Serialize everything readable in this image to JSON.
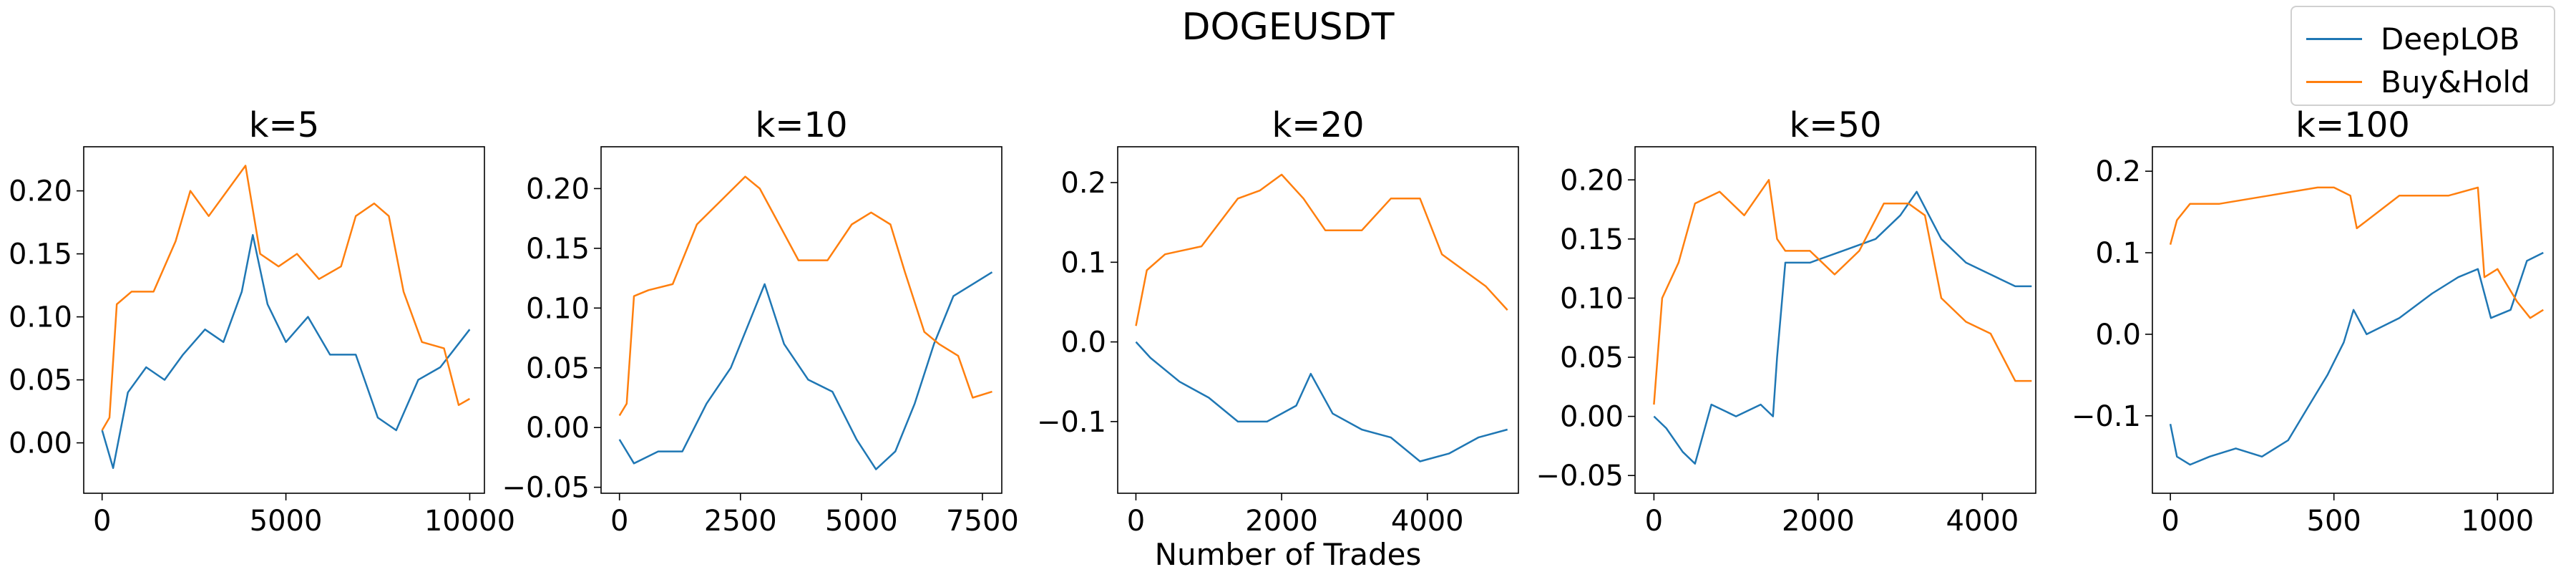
{
  "figure_title": "DOGEUSDT",
  "x_axis_label": "Number of Trades",
  "legend": [
    {
      "name": "DeepLOB",
      "color": "#1f77b4"
    },
    {
      "name": "Buy&Hold",
      "color": "#ff7f0e"
    }
  ],
  "chart_data": [
    {
      "type": "line",
      "title": "k=5",
      "xlim": [
        -500,
        10400
      ],
      "ylim": [
        -0.04,
        0.235
      ],
      "xticks": [
        0,
        5000,
        10000
      ],
      "yticks": [
        0.0,
        0.05,
        0.1,
        0.15,
        0.2
      ],
      "ytick_decimals": 2,
      "series": [
        {
          "name": "DeepLOB",
          "x": [
            0,
            300,
            700,
            1200,
            1700,
            2200,
            2800,
            3300,
            3800,
            4100,
            4500,
            5000,
            5600,
            6200,
            6900,
            7500,
            8000,
            8600,
            9200,
            10000
          ],
          "y": [
            0.01,
            -0.02,
            0.04,
            0.06,
            0.05,
            0.07,
            0.09,
            0.08,
            0.12,
            0.165,
            0.11,
            0.08,
            0.1,
            0.07,
            0.07,
            0.02,
            0.01,
            0.05,
            0.06,
            0.09
          ]
        },
        {
          "name": "Buy&Hold",
          "x": [
            0,
            200,
            400,
            800,
            1400,
            2000,
            2400,
            2900,
            3400,
            3900,
            4300,
            4800,
            5300,
            5900,
            6500,
            6900,
            7400,
            7800,
            8200,
            8700,
            9300,
            9700,
            10000
          ],
          "y": [
            0.01,
            0.02,
            0.11,
            0.12,
            0.12,
            0.16,
            0.2,
            0.18,
            0.2,
            0.22,
            0.15,
            0.14,
            0.15,
            0.13,
            0.14,
            0.18,
            0.19,
            0.18,
            0.12,
            0.08,
            0.075,
            0.03,
            0.035
          ]
        }
      ]
    },
    {
      "type": "line",
      "title": "k=10",
      "xlim": [
        -380,
        7900
      ],
      "ylim": [
        -0.055,
        0.235
      ],
      "xticks": [
        0,
        2500,
        5000,
        7500
      ],
      "yticks": [
        -0.05,
        0.0,
        0.05,
        0.1,
        0.15,
        0.2
      ],
      "ytick_decimals": 2,
      "series": [
        {
          "name": "DeepLOB",
          "x": [
            0,
            300,
            800,
            1300,
            1800,
            2300,
            2800,
            3000,
            3400,
            3900,
            4400,
            4900,
            5300,
            5700,
            6100,
            6500,
            6900,
            7300,
            7700
          ],
          "y": [
            -0.01,
            -0.03,
            -0.02,
            -0.02,
            0.02,
            0.05,
            0.1,
            0.12,
            0.07,
            0.04,
            0.03,
            -0.01,
            -0.035,
            -0.02,
            0.02,
            0.07,
            0.11,
            0.12,
            0.13
          ]
        },
        {
          "name": "Buy&Hold",
          "x": [
            0,
            150,
            300,
            600,
            1100,
            1600,
            2100,
            2600,
            2900,
            3300,
            3700,
            4300,
            4800,
            5200,
            5600,
            5900,
            6300,
            6600,
            7000,
            7300,
            7700
          ],
          "y": [
            0.01,
            0.02,
            0.11,
            0.115,
            0.12,
            0.17,
            0.19,
            0.21,
            0.2,
            0.17,
            0.14,
            0.14,
            0.17,
            0.18,
            0.17,
            0.13,
            0.08,
            0.07,
            0.06,
            0.025,
            0.03
          ]
        }
      ]
    },
    {
      "type": "line",
      "title": "k=20",
      "xlim": [
        -250,
        5250
      ],
      "ylim": [
        -0.19,
        0.245
      ],
      "xticks": [
        0,
        2000,
        4000
      ],
      "yticks": [
        -0.1,
        0.0,
        0.1,
        0.2
      ],
      "ytick_decimals": 1,
      "series": [
        {
          "name": "DeepLOB",
          "x": [
            0,
            200,
            600,
            1000,
            1400,
            1800,
            2200,
            2400,
            2700,
            3100,
            3500,
            3900,
            4300,
            4700,
            5100
          ],
          "y": [
            0.0,
            -0.02,
            -0.05,
            -0.07,
            -0.1,
            -0.1,
            -0.08,
            -0.04,
            -0.09,
            -0.11,
            -0.12,
            -0.15,
            -0.14,
            -0.12,
            -0.11
          ]
        },
        {
          "name": "Buy&Hold",
          "x": [
            0,
            150,
            400,
            900,
            1400,
            1700,
            2000,
            2300,
            2600,
            3100,
            3500,
            3900,
            4200,
            4500,
            4800,
            5100
          ],
          "y": [
            0.02,
            0.09,
            0.11,
            0.12,
            0.18,
            0.19,
            0.21,
            0.18,
            0.14,
            0.14,
            0.18,
            0.18,
            0.11,
            0.09,
            0.07,
            0.04
          ]
        }
      ]
    },
    {
      "type": "line",
      "title": "k=50",
      "xlim": [
        -230,
        4650
      ],
      "ylim": [
        -0.065,
        0.228
      ],
      "xticks": [
        0,
        2000,
        4000
      ],
      "yticks": [
        -0.05,
        0.0,
        0.05,
        0.1,
        0.15,
        0.2
      ],
      "ytick_decimals": 2,
      "series": [
        {
          "name": "DeepLOB",
          "x": [
            0,
            150,
            350,
            500,
            700,
            1000,
            1300,
            1450,
            1500,
            1600,
            1900,
            2300,
            2700,
            3000,
            3200,
            3500,
            3800,
            4100,
            4400,
            4600
          ],
          "y": [
            0.0,
            -0.01,
            -0.03,
            -0.04,
            0.01,
            0.0,
            0.01,
            0.0,
            0.05,
            0.13,
            0.13,
            0.14,
            0.15,
            0.17,
            0.19,
            0.15,
            0.13,
            0.12,
            0.11,
            0.11
          ]
        },
        {
          "name": "Buy&Hold",
          "x": [
            0,
            100,
            300,
            500,
            800,
            1100,
            1400,
            1500,
            1600,
            1900,
            2200,
            2500,
            2800,
            3100,
            3300,
            3500,
            3800,
            4100,
            4400,
            4600
          ],
          "y": [
            0.01,
            0.1,
            0.13,
            0.18,
            0.19,
            0.17,
            0.2,
            0.15,
            0.14,
            0.14,
            0.12,
            0.14,
            0.18,
            0.18,
            0.17,
            0.1,
            0.08,
            0.07,
            0.03,
            0.03
          ]
        }
      ]
    },
    {
      "type": "line",
      "title": "k=100",
      "xlim": [
        -55,
        1170
      ],
      "ylim": [
        -0.195,
        0.23
      ],
      "xticks": [
        0,
        500,
        1000
      ],
      "yticks": [
        -0.1,
        0.0,
        0.1,
        0.2
      ],
      "ytick_decimals": 1,
      "series": [
        {
          "name": "DeepLOB",
          "x": [
            0,
            20,
            60,
            120,
            200,
            280,
            360,
            420,
            480,
            530,
            560,
            600,
            700,
            800,
            880,
            940,
            980,
            1040,
            1090,
            1140
          ],
          "y": [
            -0.11,
            -0.15,
            -0.16,
            -0.15,
            -0.14,
            -0.15,
            -0.13,
            -0.09,
            -0.05,
            -0.01,
            0.03,
            0.0,
            0.02,
            0.05,
            0.07,
            0.08,
            0.02,
            0.03,
            0.09,
            0.1
          ]
        },
        {
          "name": "Buy&Hold",
          "x": [
            0,
            20,
            60,
            150,
            300,
            450,
            500,
            550,
            570,
            700,
            850,
            940,
            960,
            1000,
            1060,
            1100,
            1140
          ],
          "y": [
            0.11,
            0.14,
            0.16,
            0.16,
            0.17,
            0.18,
            0.18,
            0.17,
            0.13,
            0.17,
            0.17,
            0.18,
            0.07,
            0.08,
            0.04,
            0.02,
            0.03
          ]
        }
      ]
    }
  ]
}
